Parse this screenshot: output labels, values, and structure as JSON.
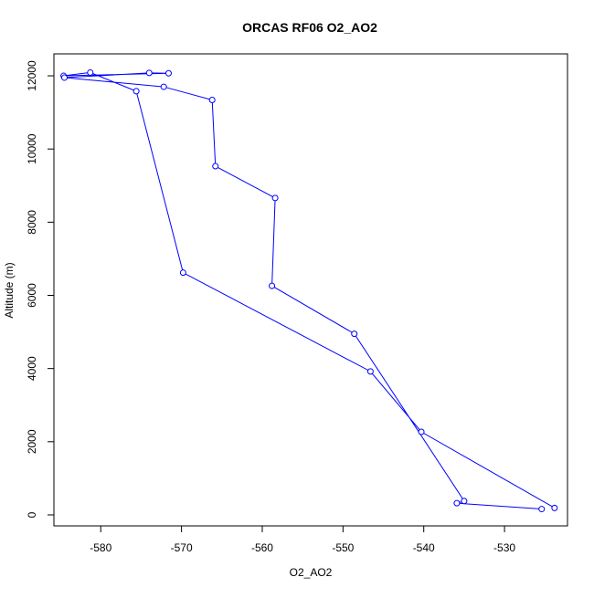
{
  "chart_data": {
    "type": "line",
    "title": "ORCAS RF06 O2_AO2",
    "xlabel": "O2_AO2",
    "ylabel": "Altitude (m)",
    "xlim": [
      -585.8,
      -522.2
    ],
    "ylim": [
      -300,
      12600
    ],
    "xticks": [
      -580,
      -570,
      -560,
      -550,
      -540,
      -530
    ],
    "yticks": [
      0,
      2000,
      4000,
      6000,
      8000,
      10000,
      12000
    ],
    "xtick_labels": [
      "-580",
      "-570",
      "-560",
      "-550",
      "-540",
      "-530"
    ],
    "ytick_labels": [
      "0",
      "2000",
      "4000",
      "6000",
      "8000",
      "10000",
      "12000"
    ],
    "grid": false,
    "series": [
      {
        "line_color": "#0000ff",
        "marker": "open-circle",
        "points": [
          {
            "x": -523.8,
            "y": 190
          },
          {
            "x": -540.3,
            "y": 2270
          },
          {
            "x": -546.6,
            "y": 3920
          },
          {
            "x": -569.8,
            "y": 6620
          },
          {
            "x": -575.6,
            "y": 11580
          },
          {
            "x": -581.3,
            "y": 12090
          },
          {
            "x": -584.6,
            "y": 12000
          },
          {
            "x": -571.6,
            "y": 12070
          },
          {
            "x": -574.0,
            "y": 12080
          },
          {
            "x": -584.5,
            "y": 11950
          },
          {
            "x": -572.2,
            "y": 11700
          },
          {
            "x": -566.2,
            "y": 11340
          },
          {
            "x": -565.8,
            "y": 9530
          },
          {
            "x": -558.4,
            "y": 8660
          },
          {
            "x": -558.8,
            "y": 6260
          },
          {
            "x": -548.6,
            "y": 4950
          },
          {
            "x": -535.0,
            "y": 380
          },
          {
            "x": -535.9,
            "y": 320
          },
          {
            "x": -525.4,
            "y": 160
          }
        ]
      }
    ]
  }
}
